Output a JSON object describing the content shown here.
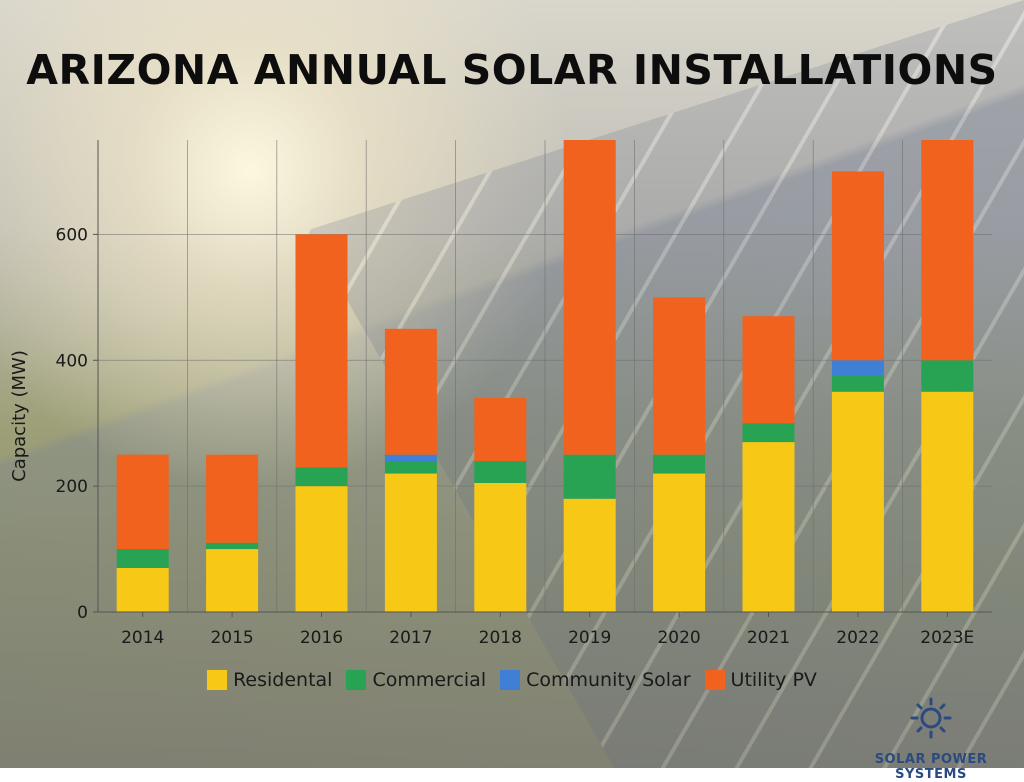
{
  "chart_data": {
    "type": "bar",
    "stacked": true,
    "title": "ARIZONA ANNUAL SOLAR INSTALLATIONS",
    "xlabel": "",
    "ylabel": "Capacity (MW)",
    "ylim": [
      0,
      750
    ],
    "yticks": [
      0,
      200,
      400,
      600
    ],
    "grid": true,
    "legend_placement": "bottom",
    "categories": [
      "2014",
      "2015",
      "2016",
      "2017",
      "2018",
      "2019",
      "2020",
      "2021",
      "2022",
      "2023E"
    ],
    "series": [
      {
        "name": "Residental",
        "color": "#f7c815",
        "values": [
          70,
          100,
          200,
          220,
          205,
          180,
          220,
          270,
          350,
          350
        ]
      },
      {
        "name": "Commercial",
        "color": "#27a353",
        "values": [
          30,
          10,
          30,
          20,
          35,
          70,
          30,
          30,
          25,
          50
        ]
      },
      {
        "name": "Community Solar",
        "color": "#3f7fd6",
        "values": [
          0,
          0,
          0,
          10,
          0,
          0,
          0,
          0,
          25,
          0
        ]
      },
      {
        "name": "Utility PV",
        "color": "#f0621d",
        "values": [
          150,
          140,
          370,
          200,
          100,
          500,
          250,
          170,
          300,
          350
        ]
      }
    ]
  },
  "logo": {
    "text": "SOLAR POWER SYSTEMS",
    "icon": "sun-icon",
    "color": "#2a4a80"
  }
}
